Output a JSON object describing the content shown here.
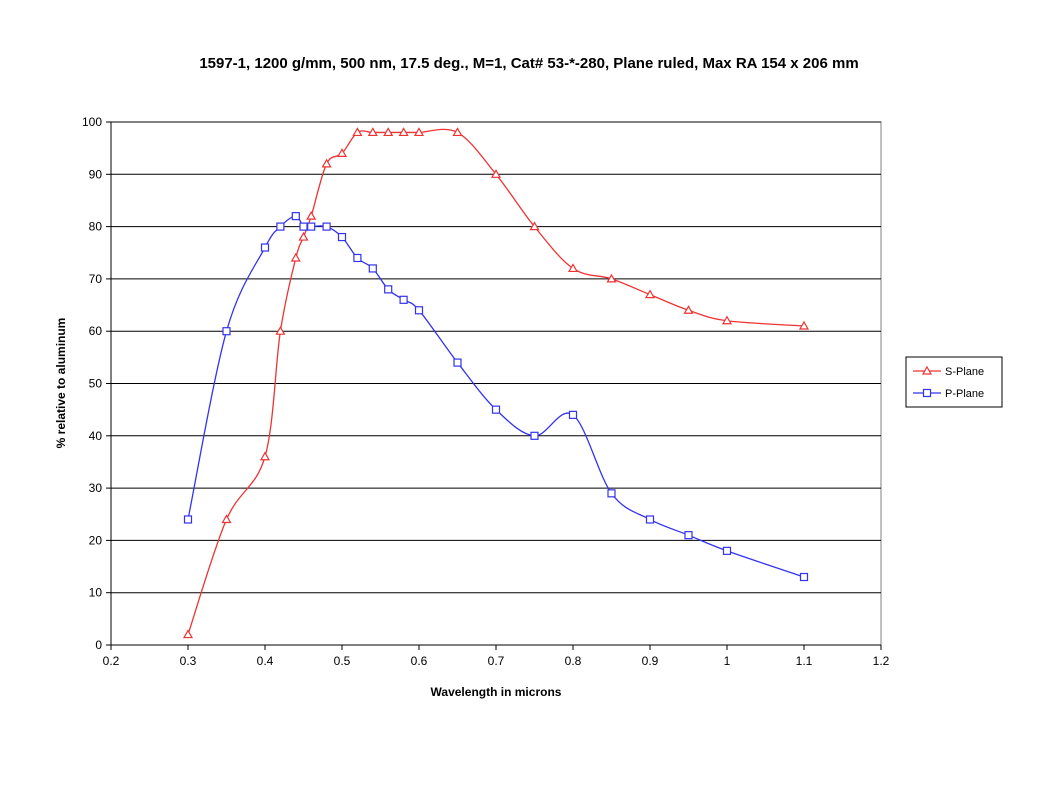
{
  "chart_data": {
    "type": "line",
    "title": "1597-1, 1200 g/mm, 500 nm, 17.5 deg., M=1, Cat# 53-*-280, Plane ruled, Max RA 154 x 206 mm",
    "xlabel": "Wavelength  in microns",
    "ylabel": "% relative to aluminum",
    "xlim": [
      0.2,
      1.2
    ],
    "ylim": [
      0,
      100
    ],
    "xticks": [
      0.2,
      0.3,
      0.4,
      0.5,
      0.6,
      0.7,
      0.8,
      0.9,
      1.0,
      1.1,
      1.2
    ],
    "xtick_labels": [
      "0.2",
      "0.3",
      "0.4",
      "0.5",
      "0.6",
      "0.7",
      "0.8",
      "0.9",
      "1",
      "1.1",
      "1.2"
    ],
    "yticks": [
      0,
      10,
      20,
      30,
      40,
      50,
      60,
      70,
      80,
      90,
      100
    ],
    "ytick_labels": [
      "0",
      "10",
      "20",
      "30",
      "40",
      "50",
      "60",
      "70",
      "80",
      "90",
      "100"
    ],
    "grid": "horizontal",
    "legend_position": "right",
    "series": [
      {
        "name": "S-Plane",
        "color": "#ee3333",
        "marker": "triangle",
        "x": [
          0.3,
          0.35,
          0.4,
          0.42,
          0.44,
          0.45,
          0.46,
          0.48,
          0.5,
          0.52,
          0.54,
          0.56,
          0.58,
          0.6,
          0.65,
          0.7,
          0.75,
          0.8,
          0.85,
          0.9,
          0.95,
          1.0,
          1.1
        ],
        "y": [
          2,
          24,
          36,
          60,
          74,
          78,
          82,
          92,
          94,
          98,
          98,
          98,
          98,
          98,
          98,
          90,
          80,
          72,
          70,
          67,
          64,
          62,
          61
        ]
      },
      {
        "name": "P-Plane",
        "color": "#3333ee",
        "marker": "square",
        "x": [
          0.3,
          0.35,
          0.4,
          0.42,
          0.44,
          0.45,
          0.46,
          0.48,
          0.5,
          0.52,
          0.54,
          0.56,
          0.58,
          0.6,
          0.65,
          0.7,
          0.75,
          0.8,
          0.85,
          0.9,
          0.95,
          1.0,
          1.1
        ],
        "y": [
          24,
          60,
          76,
          80,
          82,
          80,
          80,
          80,
          78,
          74,
          72,
          68,
          66,
          64,
          54,
          45,
          40,
          44,
          29,
          24,
          21,
          18,
          13
        ]
      }
    ]
  }
}
